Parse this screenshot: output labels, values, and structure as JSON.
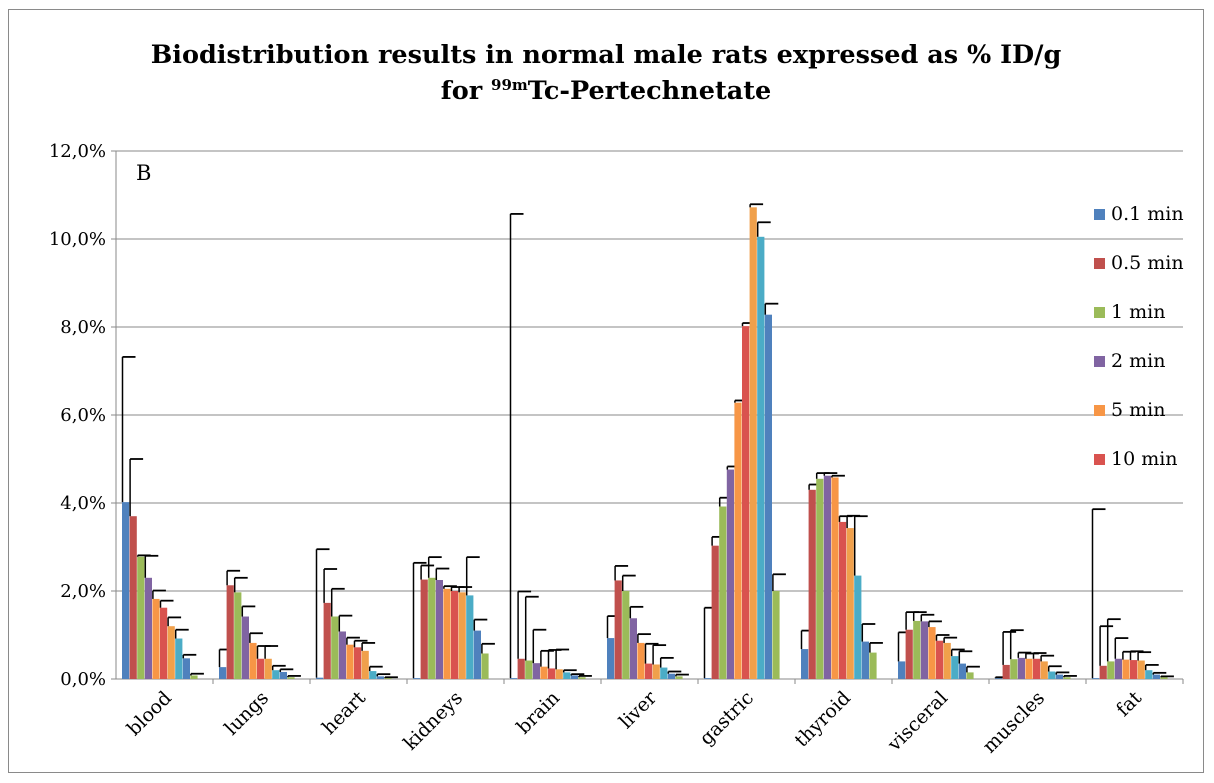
{
  "chart_data": {
    "type": "bar",
    "title_line1": "Biodistribution results in normal male rats expressed as % ID/g",
    "title_line2_prefix": "for ",
    "title_line2_sup": "99m",
    "title_line2_suffix": "Tc-Pertechnetate",
    "panel_label": "B",
    "ylim": [
      0,
      12
    ],
    "yticks": [
      "0,0%",
      "2,0%",
      "4,0%",
      "6,0%",
      "8,0%",
      "10,0%",
      "12,0%"
    ],
    "grid": true,
    "legend_position": "right",
    "categories": [
      "blood",
      "lungs",
      "heart",
      "kidneys",
      "brain",
      "liver",
      "gastric",
      "thyroid",
      "visceral",
      "muscles",
      "fat"
    ],
    "series": [
      {
        "name": "0.1 min",
        "color": "#4F81BD",
        "values": [
          4.02,
          0.27,
          0.03,
          0.02,
          0.02,
          0.93,
          0.02,
          0.68,
          0.4,
          0.02,
          0.02
        ],
        "errors": [
          3.3,
          0.4,
          2.92,
          2.62,
          10.55,
          0.5,
          1.6,
          0.42,
          0.66,
          0.02,
          3.84
        ]
      },
      {
        "name": "0.5 min",
        "color": "#C0504D",
        "values": [
          3.7,
          2.13,
          1.73,
          2.26,
          0.46,
          2.24,
          3.03,
          4.3,
          1.12,
          0.32,
          0.3
        ],
        "errors": [
          1.3,
          0.33,
          0.77,
          0.32,
          1.53,
          0.33,
          0.2,
          0.12,
          0.4,
          0.75,
          0.9
        ]
      },
      {
        "name": "1 min",
        "color": "#9BBB59",
        "values": [
          2.78,
          1.97,
          1.42,
          2.3,
          0.42,
          2.0,
          3.92,
          4.55,
          1.32,
          0.45,
          0.4
        ],
        "errors": [
          0.03,
          0.33,
          0.63,
          0.47,
          1.45,
          0.35,
          0.2,
          0.13,
          0.2,
          0.66,
          0.96
        ]
      },
      {
        "name": "2 min",
        "color": "#8064A2",
        "values": [
          2.3,
          1.42,
          1.08,
          2.25,
          0.36,
          1.38,
          4.76,
          4.62,
          1.31,
          0.48,
          0.46
        ],
        "errors": [
          0.5,
          0.23,
          0.36,
          0.26,
          0.76,
          0.26,
          0.07,
          0.06,
          0.15,
          0.12,
          0.47
        ]
      },
      {
        "name": "5 min",
        "color": "#F79646",
        "values": [
          1.82,
          0.82,
          0.78,
          2.05,
          0.28,
          0.82,
          6.28,
          4.58,
          1.18,
          0.46,
          0.44
        ],
        "errors": [
          0.19,
          0.22,
          0.16,
          0.06,
          0.36,
          0.2,
          0.05,
          0.04,
          0.13,
          0.12,
          0.18
        ]
      },
      {
        "name": "10 min",
        "color": "#D9534F",
        "values": [
          1.62,
          0.46,
          0.72,
          2.0,
          0.24,
          0.35,
          8.02,
          3.57,
          0.87,
          0.46,
          0.43
        ],
        "errors": [
          0.16,
          0.29,
          0.15,
          0.09,
          0.42,
          0.45,
          0.07,
          0.13,
          0.13,
          0.13,
          0.2
        ]
      },
      {
        "name": "",
        "color": "#F0A04B",
        "values": [
          1.2,
          0.46,
          0.64,
          1.97,
          0.22,
          0.33,
          10.72,
          3.43,
          0.82,
          0.4,
          0.42
        ],
        "errors": [
          0.2,
          0.29,
          0.18,
          0.12,
          0.45,
          0.44,
          0.07,
          0.28,
          0.12,
          0.13,
          0.19
        ]
      },
      {
        "name": "",
        "color": "#4BACC6",
        "values": [
          0.92,
          0.2,
          0.18,
          1.9,
          0.15,
          0.26,
          10.05,
          2.35,
          0.52,
          0.17,
          0.2
        ],
        "errors": [
          0.2,
          0.1,
          0.1,
          0.87,
          0.05,
          0.22,
          0.33,
          1.35,
          0.15,
          0.12,
          0.12
        ]
      },
      {
        "name": "",
        "color": "#4F81BD",
        "values": [
          0.47,
          0.16,
          0.06,
          1.1,
          0.08,
          0.12,
          8.28,
          0.85,
          0.35,
          0.1,
          0.1
        ],
        "errors": [
          0.08,
          0.06,
          0.05,
          0.25,
          0.03,
          0.05,
          0.25,
          0.4,
          0.28,
          0.05,
          0.04
        ]
      },
      {
        "name": "",
        "color": "#9BBB59",
        "values": [
          0.08,
          0.04,
          0.02,
          0.58,
          0.04,
          0.06,
          2.0,
          0.6,
          0.15,
          0.04,
          0.04
        ],
        "errors": [
          0.04,
          0.03,
          0.02,
          0.22,
          0.03,
          0.04,
          0.38,
          0.22,
          0.13,
          0.03,
          0.02
        ]
      }
    ]
  }
}
